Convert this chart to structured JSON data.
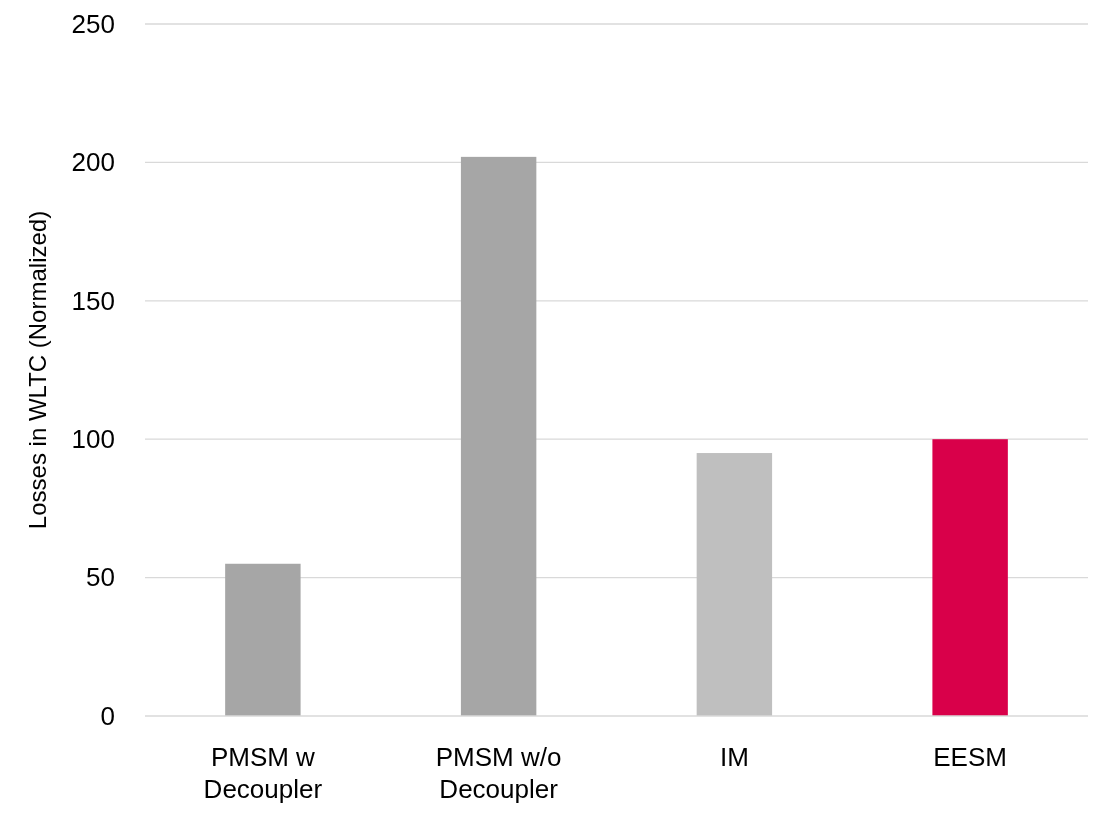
{
  "chart_data": {
    "type": "bar",
    "ylabel": "Losses in WLTC (Normalized)",
    "categories": [
      "PMSM w Decoupler",
      "PMSM w/o Decoupler",
      "IM",
      "EESM"
    ],
    "values": [
      55,
      202,
      95,
      100
    ],
    "colors": [
      "#a6a6a6",
      "#a6a6a6",
      "#bfbfbf",
      "#d9004a"
    ],
    "ylim": [
      0,
      250
    ],
    "yticks": [
      0,
      50,
      100,
      150,
      200,
      250
    ],
    "grid": "y"
  }
}
